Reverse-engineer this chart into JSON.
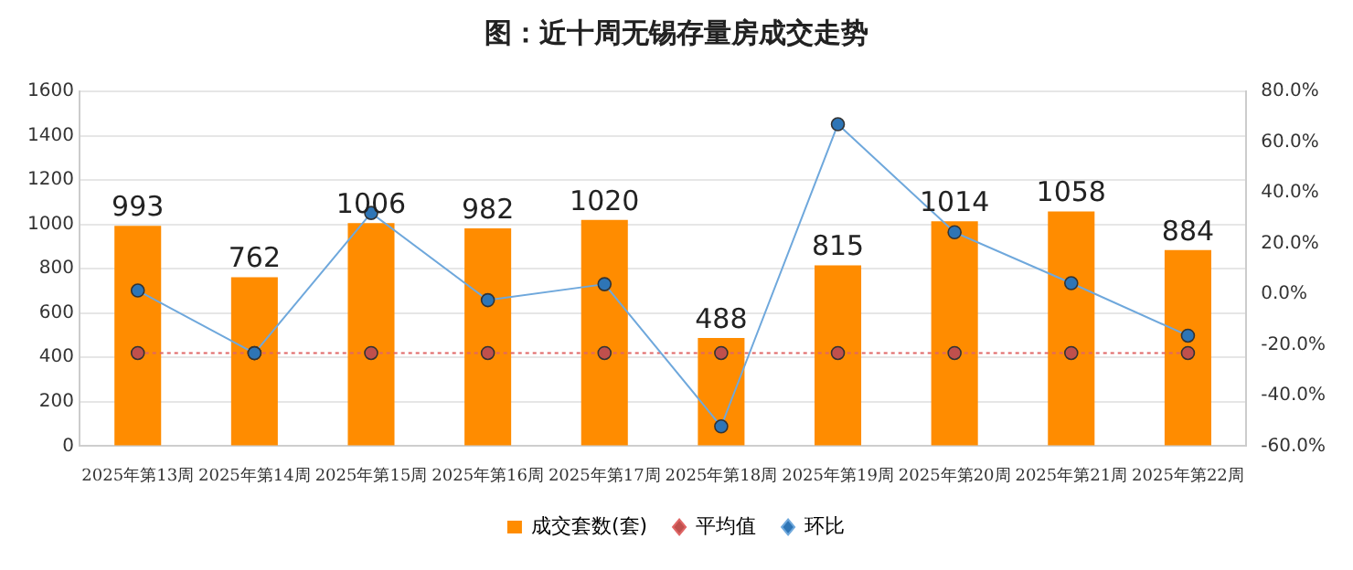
{
  "chart_data": {
    "type": "bar",
    "title": "图：近十周无锡存量房成交走势",
    "categories": [
      "2025年第13周",
      "2025年第14周",
      "2025年第15周",
      "2025年第16周",
      "2025年第17周",
      "2025年第18周",
      "2025年第19周",
      "2025年第20周",
      "2025年第21周",
      "2025年第22周"
    ],
    "series": [
      {
        "name": "成交套数(套)",
        "color": "#ff8c00",
        "values": [
          993,
          762,
          1006,
          982,
          1020,
          488,
          815,
          1014,
          1058,
          884
        ],
        "value_labels": [
          "993",
          "762",
          "1006",
          "982",
          "1020",
          "488",
          "815",
          "1014",
          "1058",
          "884"
        ]
      },
      {
        "name": "平均值",
        "type": "line",
        "color": "#e06666",
        "line_style": "dotted",
        "marker": "circle",
        "values": [
          420,
          420,
          420,
          420,
          420,
          420,
          420,
          420,
          420,
          420
        ]
      },
      {
        "name": "环比",
        "type": "line",
        "color": "#6fa8dc",
        "line_style": "solid",
        "marker": "circle",
        "axis": "y2",
        "values": [
          1.4,
          -23.3,
          32.0,
          -2.4,
          3.9,
          -52.2,
          67.0,
          24.4,
          4.3,
          -16.4
        ]
      }
    ],
    "ylim": [
      0,
      1600
    ],
    "yticks": [
      0,
      200,
      400,
      600,
      800,
      1000,
      1200,
      1400,
      1600
    ],
    "y2lim": [
      -60,
      80
    ],
    "y2ticks": [
      {
        "value": -60,
        "label": "-60.0%"
      },
      {
        "value": -40,
        "label": "-40.0%"
      },
      {
        "value": -20,
        "label": "-20.0%"
      },
      {
        "value": 0,
        "label": "0.0%"
      },
      {
        "value": 20,
        "label": "20.0%"
      },
      {
        "value": 40,
        "label": "40.0%"
      },
      {
        "value": 60,
        "label": "60.0%"
      },
      {
        "value": 80,
        "label": "80.0%"
      }
    ],
    "grid": "y",
    "legend": "bottom"
  }
}
